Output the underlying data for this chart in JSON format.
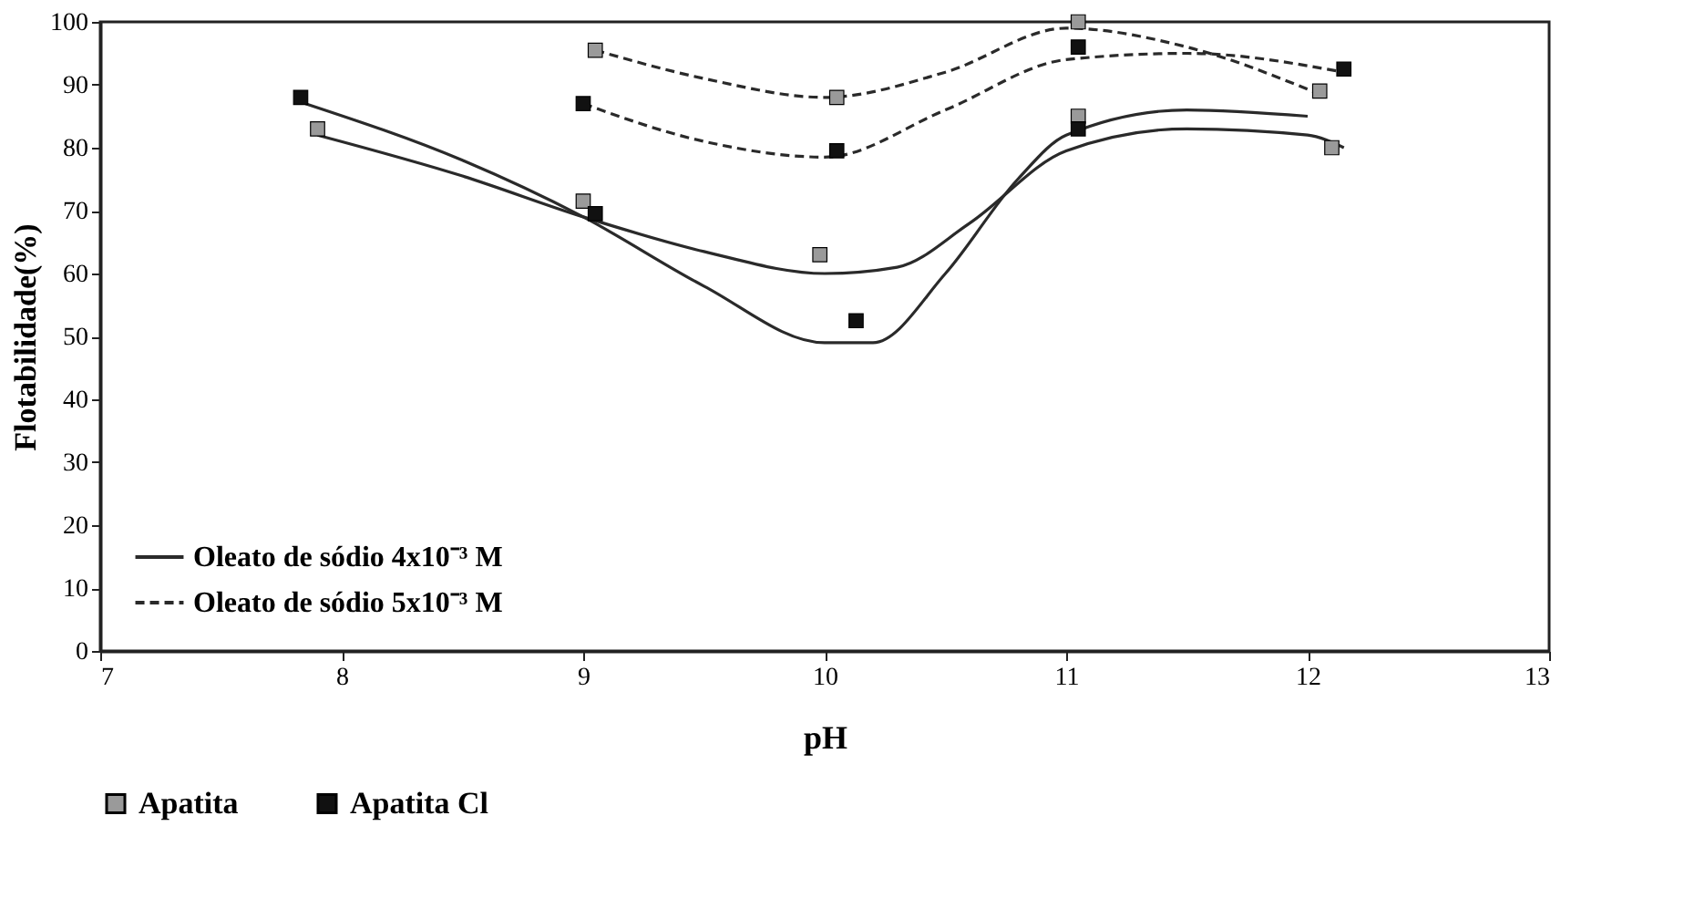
{
  "chart_data": {
    "type": "scatter",
    "xlabel": "pH",
    "ylabel": "Flotabilidade(%)",
    "xlim": [
      7,
      13
    ],
    "ylim": [
      0,
      100
    ],
    "xticks": [
      7,
      8,
      9,
      10,
      11,
      12,
      13
    ],
    "yticks": [
      0,
      10,
      20,
      30,
      40,
      50,
      60,
      70,
      80,
      90,
      100
    ],
    "grid": false,
    "legend": "bottom",
    "marker": "square",
    "series": [
      {
        "type": "line",
        "name": "Oleato de sódio 4x10⁻³ M",
        "color": "#2a2a2a",
        "line_style": "solid",
        "marker": "none",
        "x": [
          7.9,
          8.5,
          9,
          9.5,
          10,
          10.3,
          10.6,
          11,
          11.5,
          12,
          12.15
        ],
        "values": [
          82,
          75.5,
          69,
          63.5,
          60,
          61,
          68,
          79.5,
          83,
          82,
          80
        ]
      },
      {
        "type": "line",
        "color": "#2a2a2a",
        "line_style": "solid",
        "marker": "none",
        "x": [
          7.85,
          8.5,
          9,
          9.5,
          10,
          10.2,
          10.5,
          10.8,
          11,
          11.5,
          12
        ],
        "values": [
          87,
          78,
          69,
          58,
          49,
          49,
          60,
          75,
          82,
          86,
          85
        ]
      },
      {
        "type": "line",
        "name": "Oleato de sódio 5x10⁻³ M",
        "color": "#2a2a2a",
        "line_style": "dashed",
        "marker": "none",
        "x": [
          9.05,
          9.5,
          10,
          10.5,
          11,
          11.5,
          12.05
        ],
        "values": [
          95.5,
          91,
          88,
          92,
          99,
          96,
          88.5
        ]
      },
      {
        "type": "line",
        "color": "#2a2a2a",
        "line_style": "dashed",
        "marker": "none",
        "x": [
          9,
          9.5,
          10,
          10.5,
          11,
          11.5,
          12.15
        ],
        "values": [
          87,
          81,
          78.5,
          86,
          94,
          95,
          92
        ]
      },
      {
        "name": "Apatita",
        "color": "#9a9a9a",
        "x": [
          7.9,
          9,
          9.98,
          11.05,
          12.1
        ],
        "values": [
          83,
          71.5,
          63,
          85,
          80
        ]
      },
      {
        "name": "Apatita Cl",
        "color": "#111111",
        "x": [
          7.83,
          9.05,
          10.13,
          11.05
        ],
        "values": [
          88,
          69.5,
          52.5,
          83
        ]
      },
      {
        "color": "#9a9a9a",
        "x": [
          9.05,
          10.05,
          11.05,
          12.05
        ],
        "values": [
          95.5,
          88,
          100,
          89
        ]
      },
      {
        "color": "#111111",
        "x": [
          9,
          10.05,
          11.05,
          12.15
        ],
        "values": [
          87,
          79.5,
          96,
          92.5
        ]
      }
    ]
  }
}
